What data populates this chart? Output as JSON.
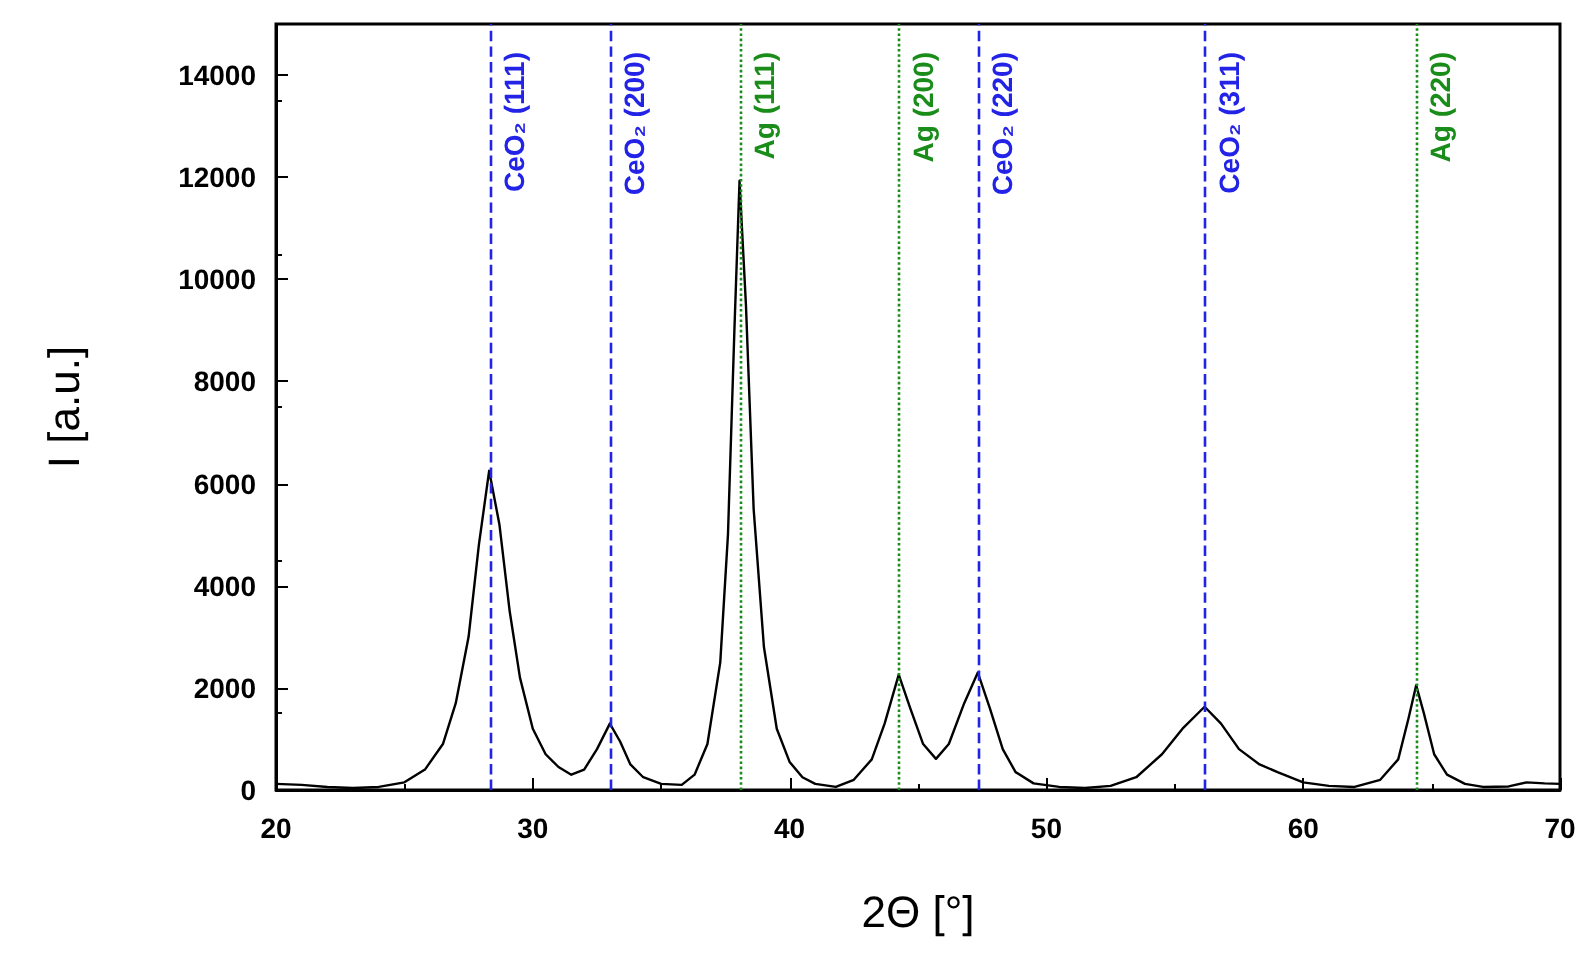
{
  "chart_data": {
    "type": "line",
    "xlabel": "2Θ [°]",
    "ylabel": "I [a.u.]",
    "xlim": [
      20,
      70
    ],
    "xticks": [
      20,
      30,
      40,
      50,
      60,
      70
    ],
    "ylim": [
      0,
      15000
    ],
    "yticks": [
      0,
      2000,
      4000,
      6000,
      8000,
      10000,
      12000,
      14000
    ],
    "grid": false,
    "marker": "none",
    "line_style": "solid",
    "series": [
      {
        "color": "#000000",
        "x": [
          20,
          21,
          22,
          23,
          24,
          25,
          25.8,
          26.5,
          27,
          27.5,
          27.9,
          28.3,
          28.7,
          29.1,
          29.5,
          30,
          30.5,
          31,
          31.5,
          32,
          32.5,
          33,
          33.4,
          33.8,
          34.3,
          35,
          35.8,
          36.3,
          36.8,
          37.3,
          37.6,
          37.85,
          38.05,
          38.3,
          38.6,
          39,
          39.5,
          40,
          40.5,
          41,
          41.8,
          42.5,
          43.2,
          43.7,
          44.25,
          44.7,
          45.2,
          45.7,
          46.2,
          46.8,
          47.33,
          47.8,
          48.3,
          48.8,
          49.5,
          50.5,
          51.5,
          52.5,
          53.5,
          54.5,
          55.3,
          56.16,
          56.8,
          57.5,
          58.3,
          59,
          60,
          61,
          62,
          63,
          63.7,
          64.1,
          64.4,
          64.7,
          65.1,
          65.6,
          66.3,
          67,
          68,
          68.7,
          69.4,
          70
        ],
        "values": [
          120,
          100,
          60,
          40,
          60,
          150,
          400,
          900,
          1700,
          3000,
          4800,
          6250,
          5200,
          3500,
          2200,
          1200,
          700,
          450,
          300,
          400,
          800,
          1300,
          950,
          500,
          250,
          120,
          100,
          300,
          900,
          2500,
          5000,
          9000,
          11930,
          9500,
          5500,
          2800,
          1200,
          550,
          250,
          120,
          60,
          200,
          600,
          1300,
          2260,
          1600,
          900,
          610,
          900,
          1700,
          2300,
          1600,
          800,
          350,
          130,
          60,
          40,
          80,
          250,
          700,
          1200,
          1630,
          1300,
          800,
          500,
          350,
          150,
          80,
          60,
          200,
          600,
          1400,
          2050,
          1500,
          700,
          300,
          120,
          60,
          70,
          150,
          130,
          120
        ]
      }
    ],
    "ref_lines": [
      {
        "axis": "x",
        "value": 28.33,
        "label": "CeO₂ (111)",
        "color": "#2323e8",
        "line_style": "dashed"
      },
      {
        "axis": "x",
        "value": 33.0,
        "label": "CeO₂ (200)",
        "color": "#2323e8",
        "line_style": "dashed"
      },
      {
        "axis": "x",
        "value": 38.07,
        "label": "Ag (111)",
        "color": "#1a8c1a",
        "line_style": "dotted"
      },
      {
        "axis": "x",
        "value": 44.25,
        "label": "Ag (200)",
        "color": "#1a8c1a",
        "line_style": "dotted"
      },
      {
        "axis": "x",
        "value": 47.33,
        "label": "CeO₂ (220)",
        "color": "#2323e8",
        "line_style": "dashed"
      },
      {
        "axis": "x",
        "value": 56.16,
        "label": "CeO₂ (311)",
        "color": "#2323e8",
        "line_style": "dashed"
      },
      {
        "axis": "x",
        "value": 64.4,
        "label": "Ag (220)",
        "color": "#1a8c1a",
        "line_style": "dotted"
      }
    ]
  }
}
